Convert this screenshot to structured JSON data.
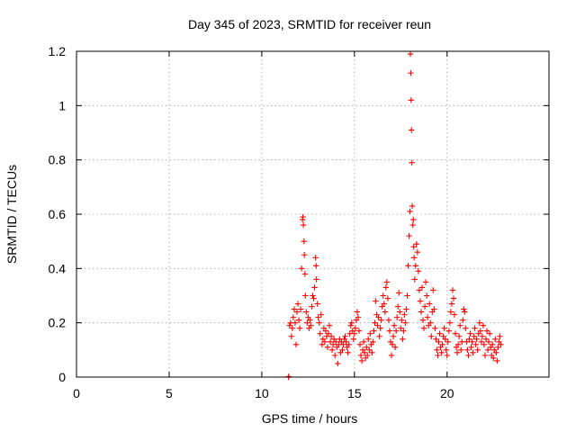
{
  "chart_data": {
    "type": "scatter",
    "title": "Day 345 of 2023, SRMTID for receiver reun",
    "xlabel": "GPS time / hours",
    "ylabel": "SRMTID / TECUs",
    "xlim": [
      0,
      25.5
    ],
    "ylim": [
      0,
      1.2
    ],
    "xticks": [
      0,
      5,
      10,
      15,
      20
    ],
    "xtick_labels": [
      "0",
      "5",
      "10",
      "15",
      "20"
    ],
    "yticks": [
      0,
      0.2,
      0.4,
      0.6,
      0.8,
      1.0,
      1.2
    ],
    "ytick_labels": [
      "0",
      "0.2",
      "0.4",
      "0.6",
      "0.8",
      "1",
      "1.2"
    ],
    "grid": true,
    "legend": "none",
    "series": [
      {
        "name": "SRMTID",
        "color": "#ff0000",
        "marker": "plus",
        "points": [
          [
            11.45,
            0.0
          ],
          [
            11.45,
            0.002
          ],
          [
            11.5,
            0.19
          ],
          [
            11.55,
            0.2
          ],
          [
            11.6,
            0.15
          ],
          [
            11.65,
            0.18
          ],
          [
            11.7,
            0.22
          ],
          [
            11.75,
            0.25
          ],
          [
            11.8,
            0.2
          ],
          [
            11.85,
            0.12
          ],
          [
            11.9,
            0.24
          ],
          [
            11.95,
            0.27
          ],
          [
            12.0,
            0.21
          ],
          [
            12.05,
            0.18
          ],
          [
            12.1,
            0.25
          ],
          [
            12.15,
            0.4
          ],
          [
            12.2,
            0.58
          ],
          [
            12.22,
            0.59
          ],
          [
            12.25,
            0.56
          ],
          [
            12.28,
            0.5
          ],
          [
            12.3,
            0.45
          ],
          [
            12.33,
            0.38
          ],
          [
            12.35,
            0.3
          ],
          [
            12.4,
            0.24
          ],
          [
            12.45,
            0.2
          ],
          [
            12.5,
            0.22
          ],
          [
            12.55,
            0.18
          ],
          [
            12.6,
            0.21
          ],
          [
            12.65,
            0.19
          ],
          [
            12.7,
            0.26
          ],
          [
            12.75,
            0.3
          ],
          [
            12.8,
            0.29
          ],
          [
            12.85,
            0.33
          ],
          [
            12.9,
            0.44
          ],
          [
            12.93,
            0.41
          ],
          [
            12.95,
            0.36
          ],
          [
            13.0,
            0.27
          ],
          [
            13.05,
            0.22
          ],
          [
            13.1,
            0.2
          ],
          [
            13.15,
            0.16
          ],
          [
            13.2,
            0.23
          ],
          [
            13.25,
            0.12
          ],
          [
            13.3,
            0.14
          ],
          [
            13.35,
            0.18
          ],
          [
            13.4,
            0.13
          ],
          [
            13.45,
            0.17
          ],
          [
            13.5,
            0.15
          ],
          [
            13.55,
            0.11
          ],
          [
            13.6,
            0.16
          ],
          [
            13.65,
            0.19
          ],
          [
            13.7,
            0.13
          ],
          [
            13.75,
            0.15
          ],
          [
            13.8,
            0.1
          ],
          [
            13.85,
            0.12
          ],
          [
            13.9,
            0.14
          ],
          [
            13.95,
            0.08
          ],
          [
            14.0,
            0.13
          ],
          [
            14.05,
            0.11
          ],
          [
            14.1,
            0.05
          ],
          [
            14.15,
            0.12
          ],
          [
            14.2,
            0.14
          ],
          [
            14.25,
            0.09
          ],
          [
            14.3,
            0.13
          ],
          [
            14.35,
            0.1
          ],
          [
            14.4,
            0.12
          ],
          [
            14.45,
            0.14
          ],
          [
            14.5,
            0.15
          ],
          [
            14.55,
            0.13
          ],
          [
            14.6,
            0.11
          ],
          [
            14.65,
            0.09
          ],
          [
            14.7,
            0.12
          ],
          [
            14.75,
            0.16
          ],
          [
            14.8,
            0.19
          ],
          [
            14.85,
            0.2
          ],
          [
            14.9,
            0.17
          ],
          [
            14.95,
            0.14
          ],
          [
            15.0,
            0.16
          ],
          [
            15.05,
            0.18
          ],
          [
            15.1,
            0.21
          ],
          [
            15.15,
            0.24
          ],
          [
            15.2,
            0.22
          ],
          [
            15.25,
            0.17
          ],
          [
            15.3,
            0.12
          ],
          [
            15.35,
            0.08
          ],
          [
            15.4,
            0.06
          ],
          [
            15.45,
            0.1
          ],
          [
            15.5,
            0.13
          ],
          [
            15.55,
            0.09
          ],
          [
            15.6,
            0.07
          ],
          [
            15.65,
            0.11
          ],
          [
            15.7,
            0.08
          ],
          [
            15.75,
            0.14
          ],
          [
            15.8,
            0.1
          ],
          [
            15.85,
            0.16
          ],
          [
            15.9,
            0.12
          ],
          [
            15.95,
            0.09
          ],
          [
            16.0,
            0.13
          ],
          [
            16.05,
            0.17
          ],
          [
            16.1,
            0.2
          ],
          [
            16.15,
            0.28
          ],
          [
            16.2,
            0.23
          ],
          [
            16.25,
            0.19
          ],
          [
            16.3,
            0.22
          ],
          [
            16.35,
            0.15
          ],
          [
            16.4,
            0.18
          ],
          [
            16.45,
            0.21
          ],
          [
            16.5,
            0.26
          ],
          [
            16.55,
            0.3
          ],
          [
            16.6,
            0.27
          ],
          [
            16.65,
            0.24
          ],
          [
            16.7,
            0.33
          ],
          [
            16.75,
            0.35
          ],
          [
            16.8,
            0.29
          ],
          [
            16.85,
            0.21
          ],
          [
            16.9,
            0.17
          ],
          [
            16.95,
            0.13
          ],
          [
            17.0,
            0.08
          ],
          [
            17.05,
            0.12
          ],
          [
            17.1,
            0.15
          ],
          [
            17.15,
            0.19
          ],
          [
            17.2,
            0.11
          ],
          [
            17.25,
            0.17
          ],
          [
            17.3,
            0.22
          ],
          [
            17.35,
            0.26
          ],
          [
            17.4,
            0.31
          ],
          [
            17.45,
            0.24
          ],
          [
            17.5,
            0.18
          ],
          [
            17.55,
            0.21
          ],
          [
            17.6,
            0.14
          ],
          [
            17.65,
            0.17
          ],
          [
            17.7,
            0.23
          ],
          [
            17.75,
            0.2
          ],
          [
            17.8,
            0.25
          ],
          [
            17.85,
            0.3
          ],
          [
            17.9,
            0.41
          ],
          [
            17.95,
            0.52
          ],
          [
            18.0,
            0.61
          ],
          [
            18.02,
            1.19
          ],
          [
            18.04,
            1.12
          ],
          [
            18.06,
            1.02
          ],
          [
            18.08,
            0.91
          ],
          [
            18.1,
            0.79
          ],
          [
            18.12,
            0.63
          ],
          [
            18.15,
            0.56
          ],
          [
            18.18,
            0.58
          ],
          [
            18.2,
            0.48
          ],
          [
            18.22,
            0.44
          ],
          [
            18.25,
            0.36
          ],
          [
            18.3,
            0.41
          ],
          [
            18.35,
            0.49
          ],
          [
            18.4,
            0.46
          ],
          [
            18.45,
            0.39
          ],
          [
            18.5,
            0.32
          ],
          [
            18.55,
            0.28
          ],
          [
            18.6,
            0.24
          ],
          [
            18.65,
            0.33
          ],
          [
            18.7,
            0.21
          ],
          [
            18.75,
            0.18
          ],
          [
            18.8,
            0.26
          ],
          [
            18.85,
            0.35
          ],
          [
            18.9,
            0.3
          ],
          [
            18.95,
            0.22
          ],
          [
            19.0,
            0.19
          ],
          [
            19.05,
            0.27
          ],
          [
            19.1,
            0.2
          ],
          [
            19.15,
            0.15
          ],
          [
            19.2,
            0.24
          ],
          [
            19.25,
            0.32
          ],
          [
            19.3,
            0.25
          ],
          [
            19.35,
            0.18
          ],
          [
            19.4,
            0.14
          ],
          [
            19.45,
            0.1
          ],
          [
            19.5,
            0.08
          ],
          [
            19.55,
            0.13
          ],
          [
            19.6,
            0.16
          ],
          [
            19.65,
            0.11
          ],
          [
            19.7,
            0.09
          ],
          [
            19.75,
            0.12
          ],
          [
            19.8,
            0.15
          ],
          [
            19.85,
            0.18
          ],
          [
            19.9,
            0.14
          ],
          [
            19.95,
            0.1
          ],
          [
            20.0,
            0.08
          ],
          [
            20.05,
            0.13
          ],
          [
            20.1,
            0.17
          ],
          [
            20.15,
            0.2
          ],
          [
            20.2,
            0.24
          ],
          [
            20.25,
            0.27
          ],
          [
            20.3,
            0.32
          ],
          [
            20.35,
            0.29
          ],
          [
            20.4,
            0.23
          ],
          [
            20.45,
            0.16
          ],
          [
            20.5,
            0.11
          ],
          [
            20.55,
            0.09
          ],
          [
            20.6,
            0.12
          ],
          [
            20.65,
            0.15
          ],
          [
            20.7,
            0.19
          ],
          [
            20.75,
            0.1
          ],
          [
            20.8,
            0.13
          ],
          [
            20.85,
            0.21
          ],
          [
            20.9,
            0.25
          ],
          [
            20.95,
            0.24
          ],
          [
            21.0,
            0.18
          ],
          [
            21.05,
            0.13
          ],
          [
            21.1,
            0.1
          ],
          [
            21.15,
            0.08
          ],
          [
            21.2,
            0.14
          ],
          [
            21.25,
            0.16
          ],
          [
            21.3,
            0.11
          ],
          [
            21.35,
            0.13
          ],
          [
            21.4,
            0.09
          ],
          [
            21.45,
            0.15
          ],
          [
            21.5,
            0.18
          ],
          [
            21.55,
            0.12
          ],
          [
            21.6,
            0.14
          ],
          [
            21.65,
            0.1
          ],
          [
            21.7,
            0.16
          ],
          [
            21.75,
            0.2
          ],
          [
            21.8,
            0.17
          ],
          [
            21.85,
            0.13
          ],
          [
            21.9,
            0.15
          ],
          [
            21.95,
            0.19
          ],
          [
            22.0,
            0.12
          ],
          [
            22.05,
            0.08
          ],
          [
            22.1,
            0.14
          ],
          [
            22.15,
            0.17
          ],
          [
            22.2,
            0.1
          ],
          [
            22.25,
            0.13
          ],
          [
            22.3,
            0.16
          ],
          [
            22.35,
            0.11
          ],
          [
            22.4,
            0.08
          ],
          [
            22.45,
            0.12
          ],
          [
            22.5,
            0.07
          ],
          [
            22.55,
            0.1
          ],
          [
            22.6,
            0.14
          ],
          [
            22.65,
            0.09
          ],
          [
            22.7,
            0.06
          ],
          [
            22.75,
            0.11
          ],
          [
            22.8,
            0.13
          ],
          [
            22.85,
            0.15
          ],
          [
            22.9,
            0.12
          ]
        ]
      }
    ]
  }
}
